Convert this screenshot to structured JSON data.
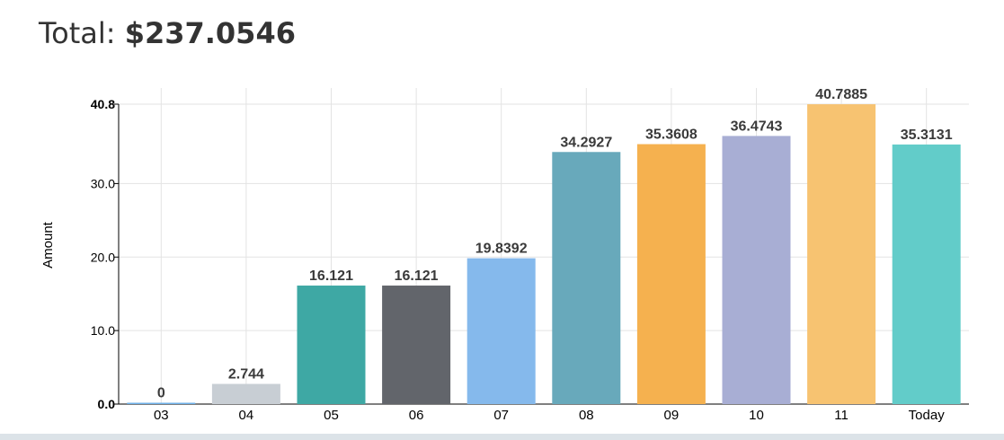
{
  "header": {
    "total_label": "Total:",
    "total_value": "$237.0546"
  },
  "chart_data": {
    "type": "bar",
    "categories": [
      "03",
      "04",
      "05",
      "06",
      "07",
      "08",
      "09",
      "10",
      "11",
      "Today"
    ],
    "values": [
      0,
      2.744,
      16.121,
      16.121,
      19.8392,
      34.2927,
      35.3608,
      36.4743,
      40.7885,
      35.3131
    ],
    "value_labels": [
      "0",
      "2.744",
      "16.121",
      "16.121",
      "19.8392",
      "34.2927",
      "35.3608",
      "36.4743",
      "40.7885",
      "35.3131"
    ],
    "colors": [
      "#6fb1e8",
      "#c8ced4",
      "#3ea8a4",
      "#62656b",
      "#85b9ec",
      "#68a9bb",
      "#f5b14f",
      "#a8aed4",
      "#f7c371",
      "#62ccc9"
    ],
    "ylabel": "Amount",
    "xlabel": "",
    "ylim": [
      0,
      40.8
    ],
    "yticks": [
      0,
      10,
      20,
      30,
      40.8
    ],
    "ytick_labels": [
      "0.0",
      "10.0",
      "20.0",
      "30.0",
      "40.8"
    ],
    "grid": true
  }
}
